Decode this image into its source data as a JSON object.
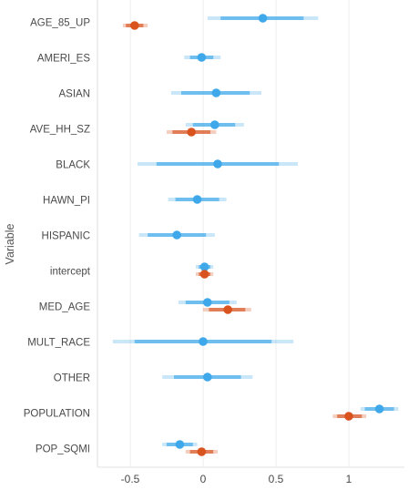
{
  "chart_data": {
    "type": "forest",
    "ylabel": "Variable",
    "xlim": [
      -0.7,
      1.35
    ],
    "x_ticks": [
      -0.5,
      0,
      0.5,
      1
    ],
    "x_tick_labels": [
      "-0.5",
      "0",
      "0.5",
      "1"
    ],
    "grid": "vertical",
    "colors": {
      "blue": "#3ea8ea",
      "orange": "#d9531e"
    },
    "categories": [
      "AGE_85_UP",
      "AMERI_ES",
      "ASIAN",
      "AVE_HH_SZ",
      "BLACK",
      "HAWN_PI",
      "HISPANIC",
      "intercept",
      "MED_AGE",
      "MULT_RACE",
      "OTHER",
      "POPULATION",
      "POP_SQMI"
    ],
    "series": [
      {
        "color": "blue",
        "points": [
          {
            "category": "AGE_85_UP",
            "x": 0.41,
            "lo": 0.03,
            "hi": 0.79,
            "lo_inner": 0.12,
            "hi_inner": 0.69
          },
          {
            "category": "AMERI_ES",
            "x": -0.01,
            "lo": -0.13,
            "hi": 0.12,
            "lo_inner": -0.09,
            "hi_inner": 0.07
          },
          {
            "category": "ASIAN",
            "x": 0.09,
            "lo": -0.22,
            "hi": 0.4,
            "lo_inner": -0.15,
            "hi_inner": 0.32
          },
          {
            "category": "AVE_HH_SZ",
            "x": 0.08,
            "lo": -0.12,
            "hi": 0.28,
            "lo_inner": -0.07,
            "hi_inner": 0.22
          },
          {
            "category": "BLACK",
            "x": 0.1,
            "lo": -0.45,
            "hi": 0.65,
            "lo_inner": -0.32,
            "hi_inner": 0.52
          },
          {
            "category": "HAWN_PI",
            "x": -0.04,
            "lo": -0.24,
            "hi": 0.16,
            "lo_inner": -0.19,
            "hi_inner": 0.11
          },
          {
            "category": "HISPANIC",
            "x": -0.18,
            "lo": -0.44,
            "hi": 0.08,
            "lo_inner": -0.38,
            "hi_inner": 0.02
          },
          {
            "category": "intercept",
            "x": 0.01,
            "lo": -0.05,
            "hi": 0.07,
            "lo_inner": -0.03,
            "hi_inner": 0.05
          },
          {
            "category": "MED_AGE",
            "x": 0.03,
            "lo": -0.17,
            "hi": 0.23,
            "lo_inner": -0.12,
            "hi_inner": 0.18
          },
          {
            "category": "MULT_RACE",
            "x": 0.0,
            "lo": -0.62,
            "hi": 0.62,
            "lo_inner": -0.47,
            "hi_inner": 0.47
          },
          {
            "category": "OTHER",
            "x": 0.03,
            "lo": -0.28,
            "hi": 0.34,
            "lo_inner": -0.2,
            "hi_inner": 0.26
          },
          {
            "category": "POPULATION",
            "x": 1.21,
            "lo": 1.08,
            "hi": 1.34,
            "lo_inner": 1.11,
            "hi_inner": 1.31
          },
          {
            "category": "POP_SQMI",
            "x": -0.16,
            "lo": -0.28,
            "hi": -0.04,
            "lo_inner": -0.25,
            "hi_inner": -0.07
          }
        ]
      },
      {
        "color": "orange",
        "points": [
          {
            "category": "AGE_85_UP",
            "x": -0.47,
            "lo": -0.55,
            "hi": -0.38,
            "lo_inner": -0.53,
            "hi_inner": -0.41
          },
          {
            "category": "AVE_HH_SZ",
            "x": -0.08,
            "lo": -0.25,
            "hi": 0.09,
            "lo_inner": -0.21,
            "hi_inner": 0.05
          },
          {
            "category": "intercept",
            "x": 0.01,
            "lo": -0.05,
            "hi": 0.07,
            "lo_inner": -0.03,
            "hi_inner": 0.05
          },
          {
            "category": "MED_AGE",
            "x": 0.17,
            "lo": 0.0,
            "hi": 0.33,
            "lo_inner": 0.04,
            "hi_inner": 0.29
          },
          {
            "category": "POPULATION",
            "x": 1.0,
            "lo": 0.89,
            "hi": 1.12,
            "lo_inner": 0.92,
            "hi_inner": 1.09
          },
          {
            "category": "POP_SQMI",
            "x": -0.01,
            "lo": -0.12,
            "hi": 0.1,
            "lo_inner": -0.09,
            "hi_inner": 0.07
          }
        ]
      }
    ]
  }
}
